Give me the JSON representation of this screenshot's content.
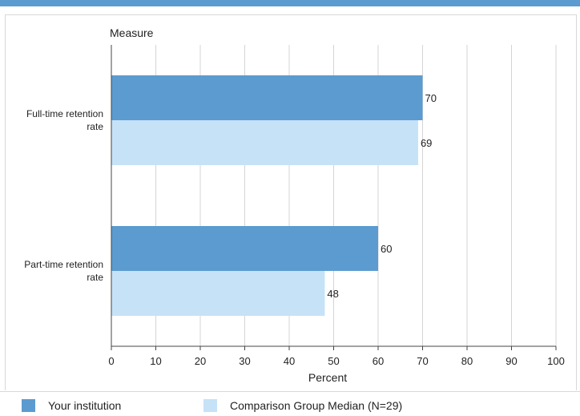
{
  "chart_data": {
    "type": "bar",
    "orientation": "horizontal",
    "ylabel": "Measure",
    "xlabel": "Percent",
    "xlim": [
      0,
      100
    ],
    "xticks": [
      0,
      10,
      20,
      30,
      40,
      50,
      60,
      70,
      80,
      90,
      100
    ],
    "grid": true,
    "categories": [
      [
        "Full-time retention",
        "rate"
      ],
      [
        "Part-time retention",
        "rate"
      ]
    ],
    "series": [
      {
        "name": "Your institution",
        "color": "#5b9bd0",
        "values": [
          70,
          60
        ]
      },
      {
        "name": "Comparison Group Median (N=29)",
        "color": "#c6e2f7",
        "values": [
          69,
          48
        ]
      }
    ],
    "legend_position": "bottom"
  }
}
